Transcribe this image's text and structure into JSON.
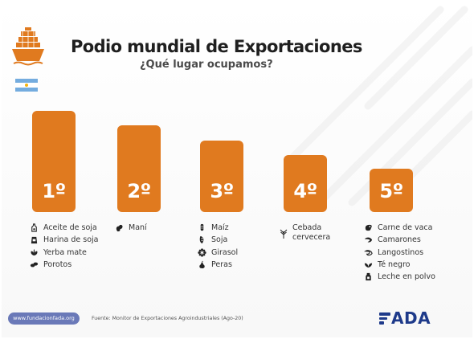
{
  "header": {
    "title": "Podio mundial de Exportaciones",
    "subtitle": "¿Qué lugar ocupamos?",
    "ship_icon": "cargo-ship-icon",
    "flag_icon": "argentina-flag-icon"
  },
  "colors": {
    "podium": "#e07a1f",
    "title": "#1f1f1f",
    "badge": "#6a79b8",
    "logo": "#1e3a8a"
  },
  "podium": [
    {
      "place": "1º"
    },
    {
      "place": "2º"
    },
    {
      "place": "3º"
    },
    {
      "place": "4º"
    },
    {
      "place": "5º"
    }
  ],
  "lists": {
    "first": [
      {
        "label": "Aceite de soja",
        "icon": "oil-bottle-icon"
      },
      {
        "label": "Harina de soja",
        "icon": "flour-bag-icon"
      },
      {
        "label": "Yerba mate",
        "icon": "leaves-icon"
      },
      {
        "label": "Porotos",
        "icon": "beans-icon"
      }
    ],
    "second": [
      {
        "label": "Maní",
        "icon": "peanut-icon"
      }
    ],
    "third": [
      {
        "label": "Maíz",
        "icon": "corn-icon"
      },
      {
        "label": "Soja",
        "icon": "soy-icon"
      },
      {
        "label": "Girasol",
        "icon": "sunflower-icon"
      },
      {
        "label": "Peras",
        "icon": "pear-icon"
      }
    ],
    "fourth": {
      "line1": "Cebada",
      "line2": "cervecera",
      "icon": "barley-icon"
    },
    "fifth": [
      {
        "label": "Carne de vaca",
        "icon": "steak-icon"
      },
      {
        "label": "Camarones",
        "icon": "shrimp-icon"
      },
      {
        "label": "Langostinos",
        "icon": "prawn-icon"
      },
      {
        "label": "Té negro",
        "icon": "tea-leaf-icon"
      },
      {
        "label": "Leche en polvo",
        "icon": "milk-carton-icon"
      }
    ]
  },
  "footer": {
    "website": "www.fundacionfada.org",
    "source": "Fuente: Monitor de Exportaciones Agroindustriales (Ago-20)",
    "logo": "FADA"
  }
}
